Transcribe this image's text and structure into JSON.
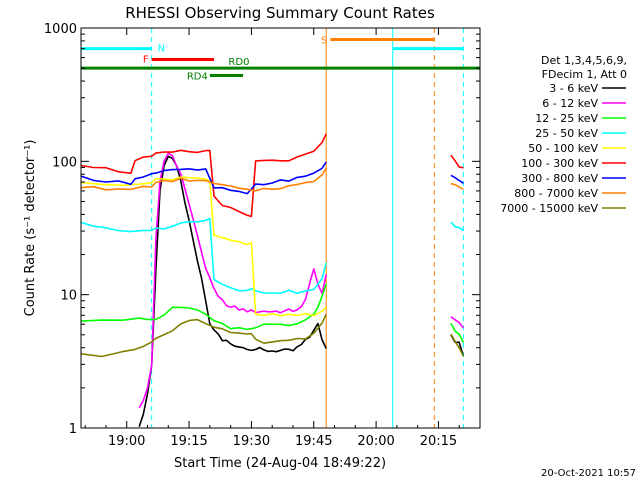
{
  "chart_data": {
    "type": "line",
    "title": "RHESSI Observing Summary Count Rates",
    "xlabel": "Start Time (24-Aug-04 18:49:22)",
    "ylabel": "Count Rate (s⁻¹ detector⁻¹)",
    "x_unit": "minutes since 18:49:22",
    "xlim": [
      0,
      96
    ],
    "ylim": [
      1,
      1000
    ],
    "yscale": "log",
    "x_ticks": [
      {
        "x": 11,
        "label": "19:00"
      },
      {
        "x": 26,
        "label": "19:15"
      },
      {
        "x": 41,
        "label": "19:30"
      },
      {
        "x": 56,
        "label": "19:45"
      },
      {
        "x": 71,
        "label": "20:00"
      },
      {
        "x": 86,
        "label": "20:15"
      }
    ],
    "y_ticks": [
      {
        "y": 1,
        "label": "1"
      },
      {
        "y": 10,
        "label": "10"
      },
      {
        "y": 100,
        "label": "100"
      },
      {
        "y": 1000,
        "label": "1000"
      }
    ],
    "legend_header": [
      "Det 1,3,4,5,6,9,",
      "FDecim 1, Att 0"
    ],
    "legend_position": "right",
    "footer_date": "20-Oct-2021 10:57",
    "flags": [
      {
        "label": "N",
        "color": "#00ffff",
        "y": 700,
        "segments": [
          [
            0,
            17
          ],
          [
            75,
            92
          ]
        ]
      },
      {
        "label": "F",
        "color": "#ff0000",
        "y": 580,
        "segments": [
          [
            17,
            32
          ]
        ]
      },
      {
        "label": "RD0",
        "color": "#008000",
        "y": 500,
        "segments": [
          [
            0,
            96
          ]
        ]
      },
      {
        "label": "RD4",
        "color": "#008000",
        "y": 440,
        "segments": [
          [
            31,
            39
          ]
        ]
      },
      {
        "label": "S",
        "color": "#ff8000",
        "y": 820,
        "segments": [
          [
            60,
            85
          ]
        ]
      }
    ],
    "vlines": [
      {
        "x": 17,
        "color": "#00ffff",
        "style": "dash"
      },
      {
        "x": 59,
        "color": "#ff8000",
        "style": "solid"
      },
      {
        "x": 75,
        "color": "#00ffff",
        "style": "solid"
      },
      {
        "x": 85,
        "color": "#ff8000",
        "style": "dash"
      },
      {
        "x": 92,
        "color": "#00ffff",
        "style": "dash"
      }
    ],
    "series": [
      {
        "name": "3 - 6 keV",
        "color": "#000000",
        "x": [
          14,
          15,
          16,
          17,
          18,
          19,
          20,
          21,
          22,
          23,
          24,
          25,
          26,
          27,
          28,
          29,
          30,
          31,
          32,
          33,
          34,
          35,
          36,
          37,
          38,
          39,
          40,
          41,
          42,
          43,
          44,
          45,
          46,
          47,
          48,
          49,
          50,
          51,
          52,
          53,
          54,
          55,
          56,
          57,
          58,
          59,
          89,
          90,
          91,
          92
        ],
        "y": [
          1,
          1.3,
          1.8,
          3,
          15,
          60,
          95,
          110,
          105,
          90,
          70,
          50,
          35,
          25,
          18,
          13,
          9,
          6,
          5.5,
          5,
          4.5,
          4.5,
          4.3,
          4.2,
          4.1,
          4,
          4,
          3.9,
          3.9,
          3.9,
          3.8,
          3.8,
          3.8,
          3.8,
          3.8,
          3.8,
          3.8,
          3.8,
          4,
          4.2,
          4.5,
          4.8,
          5.5,
          6,
          4.5,
          4,
          5,
          4.5,
          4.5,
          3.5
        ]
      },
      {
        "name": "6 - 12 keV",
        "color": "#ff00ff",
        "x": [
          14,
          15,
          16,
          17,
          18,
          19,
          20,
          21,
          22,
          23,
          24,
          25,
          26,
          27,
          28,
          29,
          30,
          31,
          32,
          33,
          34,
          35,
          36,
          37,
          38,
          39,
          40,
          41,
          42,
          43,
          44,
          45,
          46,
          47,
          48,
          49,
          50,
          51,
          52,
          53,
          54,
          55,
          56,
          57,
          58,
          59,
          89,
          90,
          91,
          92
        ],
        "y": [
          1.4,
          1.6,
          2,
          3,
          25,
          70,
          100,
          115,
          110,
          95,
          80,
          62,
          48,
          36,
          28,
          21,
          16,
          13,
          11,
          9.5,
          9,
          8.5,
          8,
          8,
          7.8,
          7.7,
          7.6,
          7.5,
          7.5,
          7.5,
          7.5,
          7.5,
          7.5,
          7.5,
          7.5,
          7.5,
          7.6,
          7.6,
          7.8,
          8,
          9,
          12,
          16,
          12,
          10,
          14,
          7,
          6.5,
          6,
          5.5
        ]
      },
      {
        "name": "12 - 25 keV",
        "color": "#00ff00",
        "x": [
          0,
          5,
          10,
          14,
          16,
          18,
          20,
          22,
          24,
          26,
          28,
          30,
          32,
          34,
          36,
          38,
          40,
          42,
          44,
          46,
          48,
          50,
          52,
          54,
          56,
          57,
          58,
          59,
          89,
          90,
          91,
          92
        ],
        "y": [
          6.5,
          6.5,
          6.5,
          6.5,
          6.5,
          6.5,
          7,
          8,
          8,
          8,
          7.5,
          7,
          6.5,
          6,
          5.5,
          5.5,
          5.5,
          5.5,
          6,
          6,
          6,
          6,
          6.2,
          6.5,
          7,
          8,
          10,
          12,
          6,
          5.5,
          5,
          4.5
        ]
      },
      {
        "name": "25 - 50 keV",
        "color": "#00ffff",
        "x": [
          0,
          3,
          6,
          9,
          12,
          15,
          17,
          18,
          20,
          22,
          24,
          26,
          28,
          30,
          31,
          32,
          34,
          36,
          38,
          40,
          41,
          42,
          44,
          46,
          48,
          50,
          52,
          54,
          56,
          58,
          59,
          89,
          90,
          91,
          92
        ],
        "y": [
          35,
          33,
          31,
          30,
          29,
          30,
          31,
          31,
          32,
          33,
          34,
          35,
          36,
          37,
          38,
          13,
          12,
          11.5,
          11,
          11,
          11,
          10.5,
          10.5,
          10.5,
          10.5,
          10.5,
          10.5,
          10.5,
          11,
          13,
          17,
          35,
          33,
          32,
          30
        ]
      },
      {
        "name": "50 - 100 keV",
        "color": "#ffff00",
        "x": [
          0,
          5,
          10,
          14,
          17,
          18,
          20,
          22,
          24,
          26,
          28,
          30,
          31,
          32,
          34,
          36,
          38,
          40,
          41,
          42,
          44,
          46,
          48,
          50,
          52,
          54,
          56,
          58,
          59
        ],
        "y": [
          68,
          67,
          68,
          69,
          70,
          72,
          74,
          75,
          76,
          75,
          74,
          73,
          73,
          28,
          27,
          26,
          25,
          24,
          24,
          7,
          7,
          7,
          7,
          7,
          7,
          7,
          7,
          7.5,
          8
        ]
      },
      {
        "name": "100 - 300 keV",
        "color": "#ff0000",
        "x": [
          0,
          3,
          6,
          9,
          12,
          13,
          15,
          17,
          18,
          20,
          22,
          24,
          26,
          28,
          30,
          31,
          32,
          34,
          36,
          38,
          40,
          41,
          42,
          44,
          46,
          48,
          50,
          52,
          54,
          56,
          58,
          59,
          89,
          90,
          91,
          92
        ],
        "y": [
          95,
          92,
          88,
          85,
          83,
          100,
          105,
          108,
          112,
          115,
          117,
          118,
          118,
          118,
          119,
          120,
          55,
          48,
          44,
          41,
          39,
          38,
          100,
          100,
          100,
          102,
          103,
          105,
          110,
          118,
          135,
          160,
          110,
          100,
          92,
          88
        ]
      },
      {
        "name": "300 - 800 keV",
        "color": "#0000ff",
        "x": [
          0,
          3,
          6,
          9,
          12,
          13,
          15,
          17,
          18,
          20,
          22,
          24,
          26,
          28,
          30,
          32,
          34,
          36,
          38,
          40,
          42,
          44,
          46,
          48,
          50,
          52,
          54,
          56,
          58,
          59,
          89,
          90,
          91,
          92
        ],
        "y": [
          76,
          74,
          72,
          70,
          69,
          75,
          78,
          80,
          82,
          84,
          85,
          86,
          86,
          86,
          86,
          64,
          62,
          60,
          58,
          57,
          66,
          68,
          70,
          72,
          73,
          74,
          76,
          80,
          90,
          100,
          78,
          75,
          72,
          70
        ]
      },
      {
        "name": "800 - 7000 keV",
        "color": "#ff8000",
        "x": [
          0,
          3,
          6,
          9,
          12,
          15,
          17,
          18,
          20,
          22,
          24,
          26,
          28,
          30,
          32,
          34,
          36,
          38,
          40,
          42,
          44,
          46,
          48,
          50,
          52,
          54,
          56,
          58,
          59,
          89,
          90,
          91,
          92
        ],
        "y": [
          65,
          63,
          61,
          61,
          62,
          64,
          66,
          68,
          70,
          72,
          73,
          73,
          72,
          70,
          68,
          66,
          64,
          62,
          60,
          61,
          62,
          63,
          64,
          65,
          66,
          68,
          72,
          80,
          90,
          70,
          68,
          64,
          62
        ]
      },
      {
        "name": "7000 - 15000 keV",
        "color": "#808000",
        "x": [
          0,
          5,
          10,
          13,
          15,
          17,
          18,
          20,
          22,
          24,
          26,
          28,
          30,
          32,
          34,
          36,
          38,
          40,
          41,
          42,
          44,
          46,
          48,
          50,
          52,
          54,
          56,
          58,
          59,
          89,
          90,
          91,
          92
        ],
        "y": [
          3.5,
          3.5,
          3.8,
          4,
          4.2,
          4.4,
          4.6,
          5,
          5.5,
          6,
          6.5,
          6.5,
          6.2,
          5.8,
          5.5,
          5.2,
          5,
          5,
          5,
          4.5,
          4.4,
          4.4,
          4.4,
          4.5,
          4.6,
          4.8,
          5,
          6,
          7,
          5,
          4.5,
          4,
          3.5
        ]
      }
    ]
  }
}
